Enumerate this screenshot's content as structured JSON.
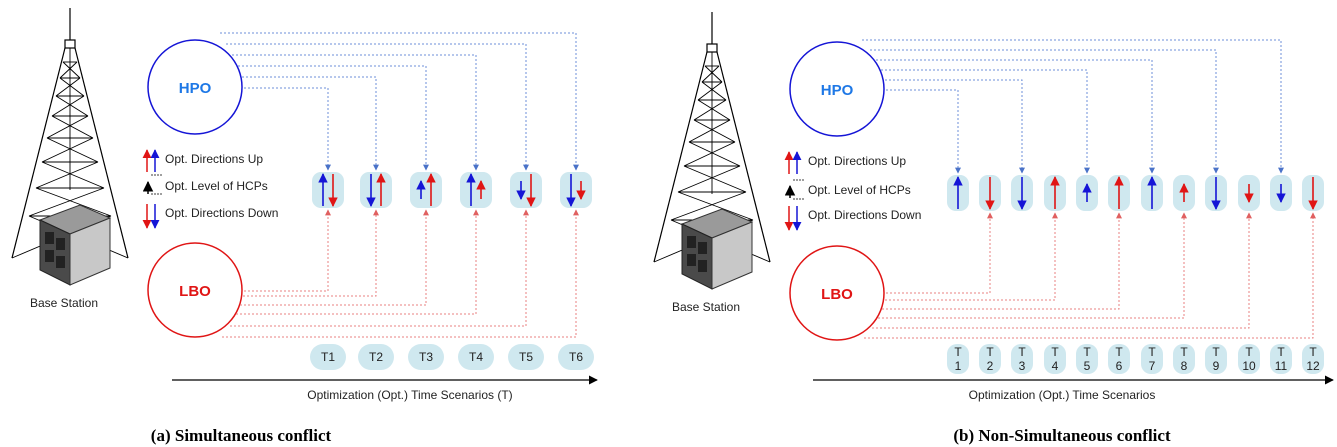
{
  "panel_a": {
    "hpo_label": "HPO",
    "lbo_label": "LBO",
    "station_label": "Base Station",
    "legend": {
      "up": "Opt. Directions Up",
      "level": "Opt. Level of HCPs",
      "down": "Opt. Directions Down"
    },
    "axis_label": "Optimization (Opt.) Time Scenarios (T)",
    "caption": "(a) Simultaneous conflict",
    "time_labels": [
      "T1",
      "T2",
      "T3",
      "T4",
      "T5",
      "T6"
    ],
    "slots": [
      {
        "blue": "up",
        "red": "down",
        "blue_level": "full",
        "red_level": "full"
      },
      {
        "blue": "down",
        "red": "up",
        "blue_level": "full",
        "red_level": "full"
      },
      {
        "blue": "up",
        "red": "up",
        "blue_level": "small",
        "red_level": "full"
      },
      {
        "blue": "up",
        "red": "up",
        "blue_level": "full",
        "red_level": "small"
      },
      {
        "blue": "down",
        "red": "down",
        "blue_level": "small",
        "red_level": "full"
      },
      {
        "blue": "down",
        "red": "down",
        "blue_level": "full",
        "red_level": "small"
      }
    ]
  },
  "panel_b": {
    "hpo_label": "HPO",
    "lbo_label": "LBO",
    "station_label": "Base Station",
    "legend": {
      "up": "Opt. Directions Up",
      "level": "Opt. Level of HCPs",
      "down": "Opt. Directions Down"
    },
    "axis_label": "Optimization (Opt.) Time Scenarios",
    "caption": "(b) Non-Simultaneous conflict",
    "time_letter": "T",
    "time_numbers": [
      "1",
      "2",
      "3",
      "4",
      "5",
      "6",
      "7",
      "8",
      "9",
      "10",
      "11",
      "12"
    ],
    "slots": [
      {
        "color": "blue",
        "dir": "up",
        "level": "full"
      },
      {
        "color": "red",
        "dir": "down",
        "level": "full"
      },
      {
        "color": "blue",
        "dir": "down",
        "level": "full"
      },
      {
        "color": "red",
        "dir": "up",
        "level": "full"
      },
      {
        "color": "blue",
        "dir": "up",
        "level": "small"
      },
      {
        "color": "red",
        "dir": "up",
        "level": "full"
      },
      {
        "color": "blue",
        "dir": "up",
        "level": "full"
      },
      {
        "color": "red",
        "dir": "up",
        "level": "small"
      },
      {
        "color": "blue",
        "dir": "down",
        "level": "full"
      },
      {
        "color": "red",
        "dir": "down",
        "level": "small"
      },
      {
        "color": "blue",
        "dir": "down",
        "level": "small"
      },
      {
        "color": "red",
        "dir": "down",
        "level": "full"
      }
    ]
  },
  "colors": {
    "hpo": "#1515d6",
    "lbo": "#e01515",
    "hpo_text": "#1e78e6",
    "pill": "#cfe8ef",
    "link_blue": "#6d8fd8",
    "link_red": "#e88080"
  }
}
